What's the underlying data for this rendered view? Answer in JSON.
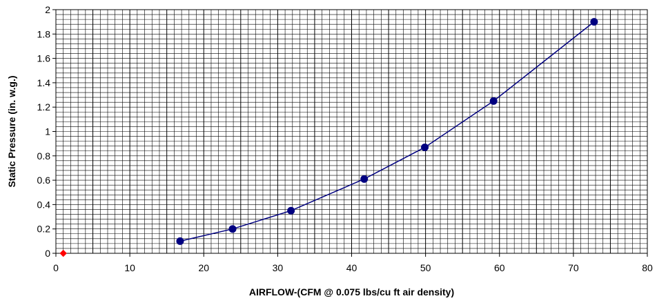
{
  "chart_data": {
    "type": "scatter",
    "title": "",
    "xlabel": "AIRFLOW-(CFM @ 0.075 lbs/cu ft air density)",
    "ylabel": "Static Pressure (in. w.g.)",
    "xlim": [
      0,
      80
    ],
    "ylim": [
      0,
      2
    ],
    "x_ticks": [
      "0",
      "10",
      "20",
      "30",
      "40",
      "50",
      "60",
      "70",
      "80"
    ],
    "y_ticks": [
      "0",
      "0.2",
      "0.4",
      "0.6",
      "0.8",
      "1",
      "1.2",
      "1.4",
      "1.6",
      "1.8",
      "2"
    ],
    "grid": true,
    "legend": "none",
    "series": [
      {
        "color": "#000080",
        "marker": "circle",
        "line": true,
        "points": [
          {
            "x": 16.8,
            "y": 0.1
          },
          {
            "x": 23.9,
            "y": 0.2
          },
          {
            "x": 31.8,
            "y": 0.35
          },
          {
            "x": 41.7,
            "y": 0.61
          },
          {
            "x": 49.9,
            "y": 0.87
          },
          {
            "x": 59.2,
            "y": 1.25
          },
          {
            "x": 72.8,
            "y": 1.9
          }
        ]
      },
      {
        "color": "#ff0000",
        "marker": "diamond",
        "line": false,
        "points": [
          {
            "x": 1.0,
            "y": 0.0
          }
        ]
      }
    ]
  }
}
